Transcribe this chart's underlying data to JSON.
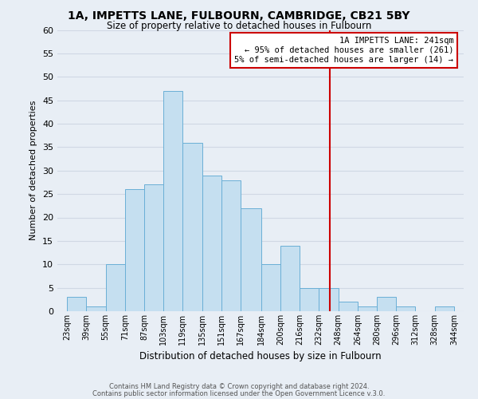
{
  "title": "1A, IMPETTS LANE, FULBOURN, CAMBRIDGE, CB21 5BY",
  "subtitle": "Size of property relative to detached houses in Fulbourn",
  "xlabel": "Distribution of detached houses by size in Fulbourn",
  "ylabel": "Number of detached properties",
  "footnote1": "Contains HM Land Registry data © Crown copyright and database right 2024.",
  "footnote2": "Contains public sector information licensed under the Open Government Licence v.3.0.",
  "bar_edges": [
    23,
    39,
    55,
    71,
    87,
    103,
    119,
    135,
    151,
    167,
    184,
    200,
    216,
    232,
    248,
    264,
    280,
    296,
    312,
    328,
    344
  ],
  "bar_heights": [
    3,
    1,
    10,
    26,
    27,
    47,
    36,
    29,
    28,
    22,
    10,
    14,
    5,
    5,
    2,
    1,
    3,
    1,
    0,
    1
  ],
  "bar_color": "#c5dff0",
  "bar_edge_color": "#6aafd6",
  "bg_color": "#e8eef5",
  "grid_color": "#d0d8e4",
  "vline_x": 241,
  "vline_color": "#cc0000",
  "annotation_title": "1A IMPETTS LANE: 241sqm",
  "annotation_line1": "← 95% of detached houses are smaller (261)",
  "annotation_line2": "5% of semi-detached houses are larger (14) →",
  "annotation_box_color": "#ffffff",
  "annotation_box_edge": "#cc0000",
  "ylim": [
    0,
    60
  ],
  "yticks": [
    0,
    5,
    10,
    15,
    20,
    25,
    30,
    35,
    40,
    45,
    50,
    55,
    60
  ]
}
